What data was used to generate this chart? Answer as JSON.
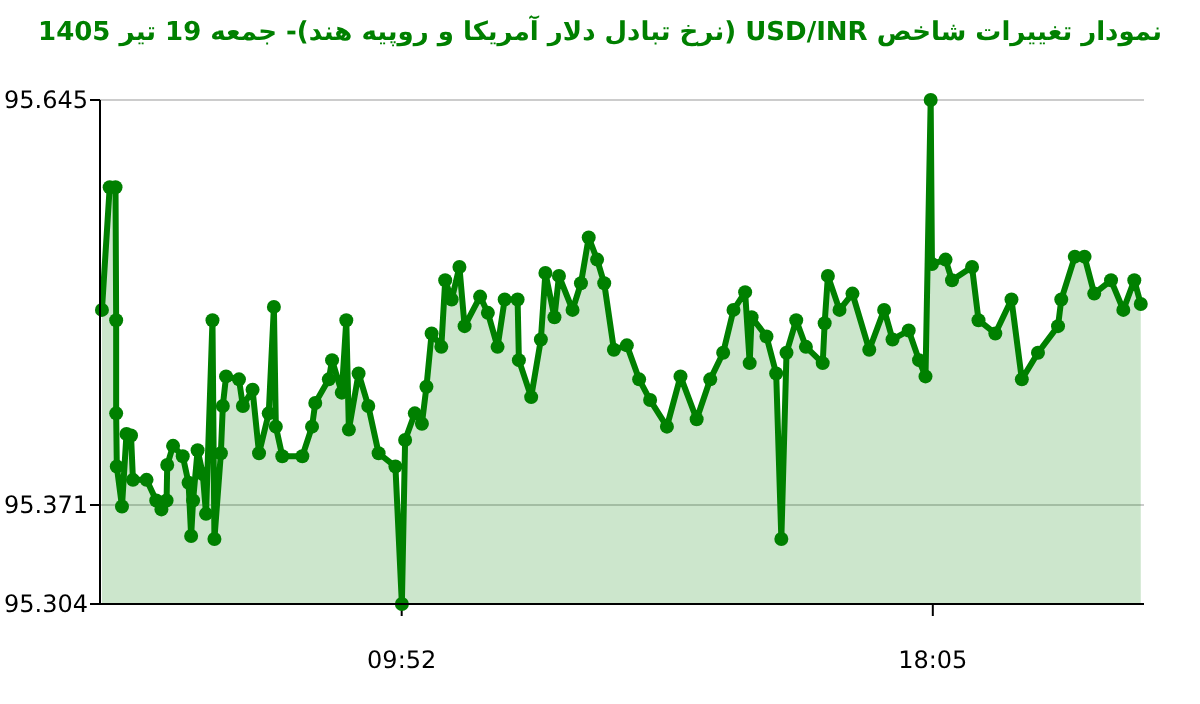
{
  "chart_data": {
    "type": "area",
    "title": "نمودار تغییرات شاخص USD/INR (نرخ تبادل دلار آمریکا و روپیه هند)- جمعه  19 تیر 1405",
    "xlim": [
      5.2,
      21.35
    ],
    "ylim": [
      95.304,
      95.645
    ],
    "xticks": [
      {
        "value": 9.867,
        "label": "09:52"
      },
      {
        "value": 18.083,
        "label": "18:05"
      }
    ],
    "yticks": [
      95.304,
      95.371,
      95.645
    ],
    "grid": "y",
    "marker": "circle",
    "x": [
      5.23,
      5.35,
      5.44,
      5.45,
      5.45,
      5.46,
      5.54,
      5.61,
      5.68,
      5.71,
      5.92,
      6.07,
      6.15,
      6.23,
      6.24,
      6.33,
      6.48,
      6.57,
      6.61,
      6.64,
      6.71,
      6.79,
      6.84,
      6.94,
      6.97,
      7.07,
      7.1,
      7.15,
      7.35,
      7.41,
      7.56,
      7.66,
      7.81,
      7.89,
      7.92,
      8.02,
      8.33,
      8.48,
      8.53,
      8.74,
      8.79,
      8.94,
      9.01,
      9.05,
      9.2,
      9.35,
      9.51,
      9.77,
      9.87,
      9.92,
      10.07,
      10.18,
      10.25,
      10.33,
      10.48,
      10.54,
      10.64,
      10.76,
      10.84,
      11.08,
      11.2,
      11.35,
      11.46,
      11.66,
      11.68,
      11.87,
      12.02,
      12.09,
      12.23,
      12.3,
      12.51,
      12.64,
      12.76,
      12.89,
      13.0,
      13.15,
      13.35,
      13.54,
      13.71,
      13.97,
      14.18,
      14.43,
      14.64,
      14.84,
      15.0,
      15.18,
      15.25,
      15.28,
      15.51,
      15.66,
      15.74,
      15.82,
      15.97,
      16.12,
      16.38,
      16.41,
      16.46,
      16.64,
      16.84,
      17.1,
      17.33,
      17.46,
      17.71,
      17.87,
      17.97,
      18.05,
      18.07,
      18.28,
      18.38,
      18.69,
      18.79,
      19.05,
      19.3,
      19.46,
      19.71,
      20.02,
      20.07,
      20.28,
      20.43,
      20.58,
      20.84,
      21.03,
      21.2,
      21.3
    ],
    "series": [
      {
        "color": "#008000",
        "values": [
          95.503,
          95.586,
          95.586,
          95.496,
          95.433,
          95.397,
          95.37,
          95.419,
          95.418,
          95.388,
          95.388,
          95.374,
          95.368,
          95.374,
          95.398,
          95.411,
          95.404,
          95.386,
          95.35,
          95.374,
          95.408,
          95.392,
          95.365,
          95.496,
          95.348,
          95.406,
          95.438,
          95.458,
          95.456,
          95.438,
          95.449,
          95.406,
          95.433,
          95.505,
          95.424,
          95.404,
          95.404,
          95.424,
          95.44,
          95.456,
          95.469,
          95.447,
          95.496,
          95.422,
          95.46,
          95.438,
          95.406,
          95.397,
          95.304,
          95.415,
          95.433,
          95.426,
          95.451,
          95.487,
          95.478,
          95.523,
          95.51,
          95.532,
          95.492,
          95.512,
          95.501,
          95.478,
          95.51,
          95.51,
          95.469,
          95.444,
          95.483,
          95.528,
          95.498,
          95.526,
          95.503,
          95.521,
          95.552,
          95.537,
          95.521,
          95.476,
          95.479,
          95.456,
          95.442,
          95.424,
          95.458,
          95.429,
          95.456,
          95.474,
          95.503,
          95.515,
          95.467,
          95.498,
          95.485,
          95.46,
          95.348,
          95.474,
          95.496,
          95.478,
          95.467,
          95.494,
          95.526,
          95.503,
          95.514,
          95.476,
          95.503,
          95.483,
          95.489,
          95.469,
          95.458,
          95.645,
          95.534,
          95.537,
          95.523,
          95.532,
          95.496,
          95.487,
          95.51,
          95.456,
          95.474,
          95.492,
          95.51,
          95.539,
          95.539,
          95.514,
          95.523,
          95.503,
          95.523,
          95.507
        ]
      }
    ]
  }
}
